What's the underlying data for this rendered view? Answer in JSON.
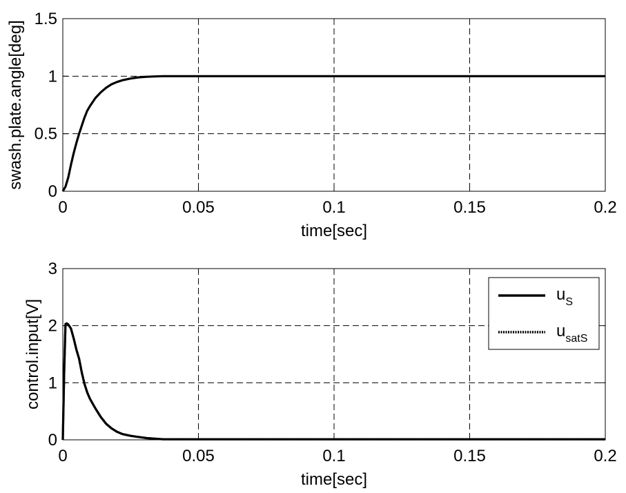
{
  "chart_data": [
    {
      "type": "line",
      "title": "",
      "xlabel": "time[sec]",
      "ylabel": "swash.plate.angle[deg]",
      "xlim": [
        0,
        0.2
      ],
      "ylim": [
        0,
        1.5
      ],
      "xticks": [
        "0",
        "0.05",
        "0.1",
        "0.15",
        "0.2"
      ],
      "yticks": [
        "0",
        "0.5",
        "1",
        "1.5"
      ],
      "grid": true,
      "series": [
        {
          "color": "#000000",
          "style": "solid",
          "x": [
            0,
            0.001,
            0.002,
            0.003,
            0.004,
            0.005,
            0.006,
            0.007,
            0.008,
            0.009,
            0.01,
            0.012,
            0.014,
            0.016,
            0.018,
            0.02,
            0.022,
            0.025,
            0.028,
            0.031,
            0.034,
            0.037,
            0.04,
            0.05,
            0.1,
            0.15,
            0.2
          ],
          "y": [
            0,
            0.04,
            0.12,
            0.23,
            0.33,
            0.42,
            0.5,
            0.57,
            0.64,
            0.7,
            0.74,
            0.81,
            0.86,
            0.9,
            0.93,
            0.95,
            0.965,
            0.98,
            0.99,
            0.995,
            0.998,
            1.0,
            1.0,
            1.0,
            1.0,
            1.0,
            1.0
          ]
        }
      ]
    },
    {
      "type": "line",
      "title": "",
      "xlabel": "time[sec]",
      "ylabel": "control.input[V]",
      "xlim": [
        0,
        0.2
      ],
      "ylim": [
        0,
        3
      ],
      "xticks": [
        "0",
        "0.05",
        "0.1",
        "0.15",
        "0.2"
      ],
      "yticks": [
        "0",
        "1",
        "2",
        "3"
      ],
      "grid": true,
      "legend": {
        "position": "top-right"
      },
      "series": [
        {
          "name": "u",
          "name_sub": "S",
          "color": "#000000",
          "style": "solid",
          "x": [
            0,
            0.0005,
            0.001,
            0.0015,
            0.002,
            0.003,
            0.004,
            0.005,
            0.006,
            0.007,
            0.008,
            0.009,
            0.01,
            0.012,
            0.014,
            0.016,
            0.018,
            0.02,
            0.022,
            0.025,
            0.028,
            0.031,
            0.034,
            0.037,
            0.04,
            0.05,
            0.1,
            0.15,
            0.2
          ],
          "y": [
            0,
            1.2,
            2.03,
            2.04,
            2.02,
            1.95,
            1.78,
            1.58,
            1.42,
            1.18,
            0.98,
            0.83,
            0.72,
            0.55,
            0.4,
            0.28,
            0.2,
            0.14,
            0.1,
            0.07,
            0.05,
            0.03,
            0.02,
            0.01,
            0.01,
            0.01,
            0.01,
            0.01,
            0.01
          ]
        },
        {
          "name": "u",
          "name_sub": "satS",
          "color": "#000000",
          "style": "dotted",
          "x": [
            0,
            0.0005,
            0.001,
            0.0015,
            0.002,
            0.003,
            0.004,
            0.005,
            0.006,
            0.007,
            0.008,
            0.009,
            0.01,
            0.012,
            0.014,
            0.016,
            0.018,
            0.02,
            0.022,
            0.025,
            0.028,
            0.031,
            0.034,
            0.037,
            0.04,
            0.05,
            0.1,
            0.15,
            0.2
          ],
          "y": [
            0,
            1.2,
            2.03,
            2.04,
            2.02,
            1.95,
            1.78,
            1.58,
            1.42,
            1.18,
            0.98,
            0.83,
            0.72,
            0.55,
            0.4,
            0.28,
            0.2,
            0.14,
            0.1,
            0.07,
            0.05,
            0.03,
            0.02,
            0.01,
            0.01,
            0.01,
            0.01,
            0.01,
            0.01
          ]
        }
      ]
    }
  ]
}
